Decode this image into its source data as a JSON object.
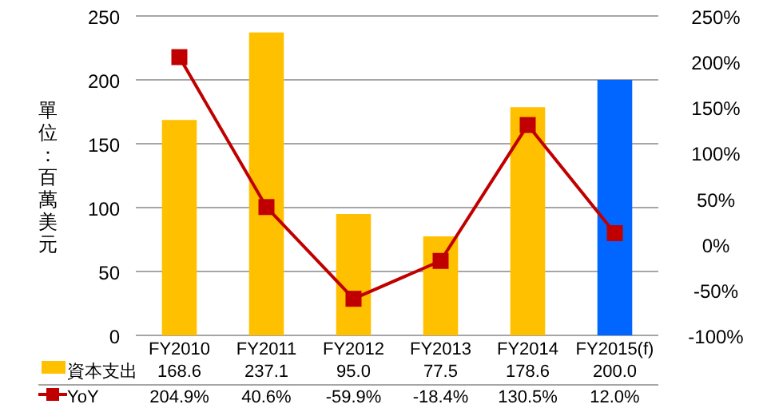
{
  "chart_data": {
    "type": "bar",
    "ylabel": "單位：百萬美元",
    "categories": [
      "FY2010",
      "FY2011",
      "FY2012",
      "FY2013",
      "FY2014",
      "FY2015(f)"
    ],
    "series": [
      {
        "name": "資本支出",
        "color": "#ffc000",
        "colors": [
          "#ffc000",
          "#ffc000",
          "#ffc000",
          "#ffc000",
          "#ffc000",
          "#0066ff"
        ],
        "values": [
          168.6,
          237.1,
          95.0,
          77.5,
          178.6,
          200.0
        ],
        "value_labels": [
          "168.6",
          "237.1",
          "95.0",
          "77.5",
          "178.6",
          "200.0"
        ]
      },
      {
        "name": "YoY",
        "type": "line",
        "axis": "y2",
        "color": "#c00000",
        "marker": "square",
        "values": [
          204.9,
          40.6,
          -59.9,
          -18.4,
          130.5,
          12.0
        ],
        "value_labels": [
          "204.9%",
          "40.6%",
          "-59.9%",
          "-18.4%",
          "130.5%",
          "12.0%"
        ]
      }
    ],
    "ylim": [
      0,
      250
    ],
    "yticks": [
      0,
      50,
      100,
      150,
      200,
      250
    ],
    "y2lim": [
      -100,
      250
    ],
    "y2ticks": [
      {
        "value": -100,
        "label": "-100%"
      },
      {
        "value": -50,
        "label": "-50%"
      },
      {
        "value": 0,
        "label": "0%"
      },
      {
        "value": 50,
        "label": "50%"
      },
      {
        "value": 100,
        "label": "100%"
      },
      {
        "value": 150,
        "label": "150%"
      },
      {
        "value": 200,
        "label": "200%"
      },
      {
        "value": 250,
        "label": "250%"
      }
    ],
    "grid": "y",
    "legend": "bottom"
  }
}
